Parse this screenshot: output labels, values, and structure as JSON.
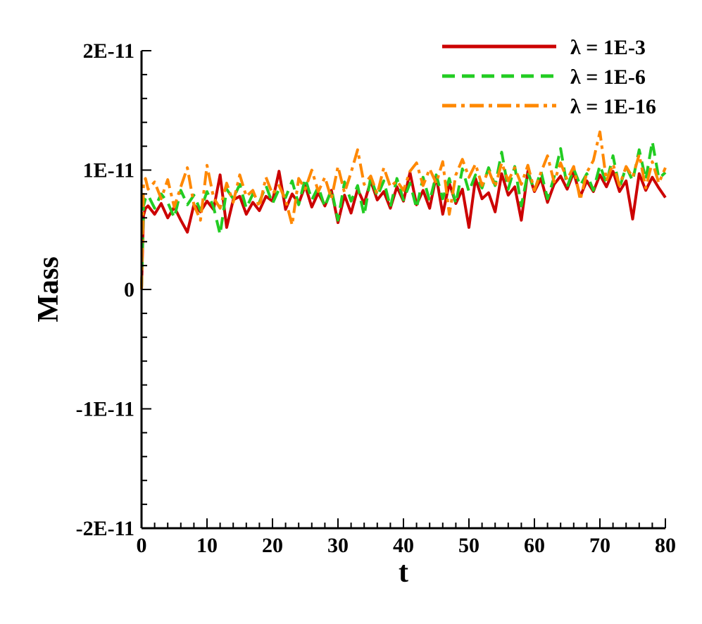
{
  "chart_data": {
    "type": "line",
    "xlabel": "t",
    "ylabel": "Mass",
    "xlim": [
      0,
      80
    ],
    "ylim": [
      -2e-11,
      2e-11
    ],
    "x_ticks": [
      0,
      10,
      20,
      30,
      40,
      50,
      60,
      70,
      80
    ],
    "x_tick_labels": [
      "0",
      "10",
      "20",
      "30",
      "40",
      "50",
      "60",
      "70",
      "80"
    ],
    "y_ticks": [
      -2e-11,
      -1e-11,
      0,
      1e-11,
      2e-11
    ],
    "y_tick_labels": [
      "-2E-11",
      "-1E-11",
      "0",
      "1E-11",
      "2E-11"
    ],
    "grid": false,
    "legend_position": "top-right",
    "series": [
      {
        "name": "λ = 1E-3",
        "color": "#cc0000",
        "dash": "solid",
        "x": [
          0,
          0.3,
          0.6,
          1,
          2,
          3,
          4,
          5,
          6,
          7,
          8,
          9,
          10,
          11,
          12,
          13,
          14,
          15,
          16,
          17,
          18,
          19,
          20,
          21,
          22,
          23,
          24,
          25,
          26,
          27,
          28,
          29,
          30,
          31,
          32,
          33,
          34,
          35,
          36,
          37,
          38,
          39,
          40,
          41,
          42,
          43,
          44,
          45,
          46,
          47,
          48,
          49,
          50,
          51,
          52,
          53,
          54,
          55,
          56,
          57,
          58,
          59,
          60,
          61,
          62,
          63,
          64,
          65,
          66,
          67,
          68,
          69,
          70,
          71,
          72,
          73,
          74,
          75,
          76,
          77,
          78,
          79,
          80
        ],
        "values": [
          0,
          6.2e-12,
          6.8e-12,
          7e-12,
          6.3e-12,
          7.2e-12,
          6e-12,
          6.9e-12,
          5.8e-12,
          4.8e-12,
          7.1e-12,
          6.5e-12,
          7.4e-12,
          6.7e-12,
          9.6e-12,
          5.2e-12,
          7.5e-12,
          7.8e-12,
          6.3e-12,
          7.3e-12,
          6.6e-12,
          7.8e-12,
          7.4e-12,
          9.9e-12,
          6.7e-12,
          8e-12,
          7.2e-12,
          8.7e-12,
          6.9e-12,
          8.1e-12,
          7e-12,
          8.3e-12,
          5.6e-12,
          7.9e-12,
          6.4e-12,
          8.4e-12,
          7.2e-12,
          9.1e-12,
          7.5e-12,
          8.2e-12,
          6.8e-12,
          8.6e-12,
          7.4e-12,
          9.8e-12,
          7.1e-12,
          8.3e-12,
          6.8e-12,
          9.5e-12,
          6.3e-12,
          8.9e-12,
          7.2e-12,
          8.4e-12,
          5.2e-12,
          9.3e-12,
          7.6e-12,
          8.1e-12,
          6.5e-12,
          9.7e-12,
          7.9e-12,
          8.6e-12,
          5.8e-12,
          9.9e-12,
          8.2e-12,
          9.3e-12,
          7.3e-12,
          8.8e-12,
          9.5e-12,
          8.4e-12,
          9.8e-12,
          7.8e-12,
          9.1e-12,
          8.2e-12,
          9.6e-12,
          8.6e-12,
          9.9e-12,
          8.2e-12,
          9.1e-12,
          5.9e-12,
          9.7e-12,
          8.3e-12,
          9.4e-12,
          8.5e-12,
          7.7e-12
        ]
      },
      {
        "name": "λ = 1E-6",
        "color": "#22cc22",
        "dash": "dash",
        "x": [
          0,
          0.3,
          0.6,
          1,
          2,
          3,
          4,
          5,
          6,
          7,
          8,
          9,
          10,
          11,
          12,
          13,
          14,
          15,
          16,
          17,
          18,
          19,
          20,
          21,
          22,
          23,
          24,
          25,
          26,
          27,
          28,
          29,
          30,
          31,
          32,
          33,
          34,
          35,
          36,
          37,
          38,
          39,
          40,
          41,
          42,
          43,
          44,
          45,
          46,
          47,
          48,
          49,
          50,
          51,
          52,
          53,
          54,
          55,
          56,
          57,
          58,
          59,
          60,
          61,
          62,
          63,
          64,
          65,
          66,
          67,
          68,
          69,
          70,
          71,
          72,
          73,
          74,
          75,
          76,
          77,
          78,
          79,
          80
        ],
        "values": [
          0,
          7e-12,
          7.6e-12,
          7.9e-12,
          6.8e-12,
          8e-12,
          7.3e-12,
          6e-12,
          8.3e-12,
          7.1e-12,
          7.9e-12,
          6.6e-12,
          8.2e-12,
          6.9e-12,
          4.6e-12,
          8.4e-12,
          7.6e-12,
          8.8e-12,
          6.8e-12,
          8e-12,
          7.3e-12,
          8.7e-12,
          7.2e-12,
          8.4e-12,
          7.7e-12,
          9.1e-12,
          7.1e-12,
          9.3e-12,
          7.5e-12,
          8.6e-12,
          6.9e-12,
          8.4e-12,
          5.8e-12,
          9e-12,
          7.4e-12,
          8.7e-12,
          6.2e-12,
          9.4e-12,
          7.8e-12,
          9.1e-12,
          6.9e-12,
          9.3e-12,
          7.5e-12,
          8.9e-12,
          6.8e-12,
          9.4e-12,
          7.4e-12,
          9.6e-12,
          7.6e-12,
          9.3e-12,
          7.2e-12,
          1.01e-11,
          8.2e-12,
          9.6e-12,
          8.5e-12,
          1.02e-11,
          8.7e-12,
          1.15e-11,
          8.4e-12,
          1.03e-11,
          7e-12,
          9.8e-12,
          8.3e-12,
          9.9e-12,
          7.6e-12,
          9.4e-12,
          1.18e-11,
          8.6e-12,
          1.01e-11,
          8.7e-12,
          9.7e-12,
          8.3e-12,
          1.04e-11,
          8.9e-12,
          1.12e-11,
          8.5e-12,
          1.03e-11,
          9.1e-12,
          1.17e-11,
          9.2e-12,
          1.24e-11,
          9.3e-12,
          9.8e-12
        ]
      },
      {
        "name": "λ = 1E-16",
        "color": "#ff8800",
        "dash": "dashdot",
        "x": [
          0,
          0.3,
          0.6,
          1,
          2,
          3,
          4,
          5,
          6,
          7,
          8,
          9,
          10,
          11,
          12,
          13,
          14,
          15,
          16,
          17,
          18,
          19,
          20,
          21,
          22,
          23,
          24,
          25,
          26,
          27,
          28,
          29,
          30,
          31,
          32,
          33,
          34,
          35,
          36,
          37,
          38,
          39,
          40,
          41,
          42,
          43,
          44,
          45,
          46,
          47,
          48,
          49,
          50,
          51,
          52,
          53,
          54,
          55,
          56,
          57,
          58,
          59,
          60,
          61,
          62,
          63,
          64,
          65,
          66,
          67,
          68,
          69,
          70,
          71,
          72,
          73,
          74,
          75,
          76,
          77,
          78,
          79,
          80
        ],
        "values": [
          0,
          8.8e-12,
          9.3e-12,
          8.4e-12,
          9e-12,
          7.6e-12,
          9.2e-12,
          6.9e-12,
          8.6e-12,
          1.02e-11,
          7.1e-12,
          5.8e-12,
          1.04e-11,
          7.7e-12,
          6.8e-12,
          8.9e-12,
          7.3e-12,
          9.6e-12,
          7.8e-12,
          8.3e-12,
          6.9e-12,
          9.4e-12,
          8e-12,
          8.7e-12,
          7.5e-12,
          5.4e-12,
          9.3e-12,
          8.4e-12,
          1e-11,
          8.2e-12,
          9.4e-12,
          7.6e-12,
          1.03e-11,
          8.1e-12,
          9.8e-12,
          1.17e-11,
          8.8e-12,
          9.5e-12,
          8e-12,
          1.02e-11,
          8.6e-12,
          9.1e-12,
          8.3e-12,
          9.9e-12,
          1.06e-11,
          8.7e-12,
          1.01e-11,
          8.9e-12,
          1.07e-11,
          6.3e-12,
          9.6e-12,
          1.09e-11,
          9.4e-12,
          1.05e-11,
          8.7e-12,
          1e-11,
          8.6e-12,
          1.06e-11,
          9.1e-12,
          1.02e-11,
          8.8e-12,
          1.04e-11,
          8.3e-12,
          9.8e-12,
          1.12e-11,
          9e-12,
          1.06e-11,
          9.2e-12,
          1.03e-11,
          7.5e-12,
          9.8e-12,
          1.08e-11,
          1.32e-11,
          9.1e-12,
          1.05e-11,
          8.7e-12,
          1.03e-11,
          9.4e-12,
          1.13e-11,
          8.5e-12,
          1.07e-11,
          8.9e-12,
          1.02e-11
        ]
      }
    ]
  }
}
